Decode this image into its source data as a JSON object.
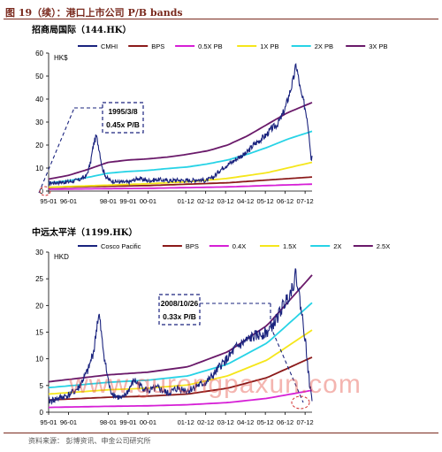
{
  "figure": {
    "title": "图 19（续）：港口上市公司 P/B bands",
    "source": "资料来源：  彭博资讯、申金公司研究所",
    "watermark": "www.gurongpaxun.com"
  },
  "chart_data": [
    {
      "type": "line",
      "title": "招商局国际（144.HK）",
      "ylabel": "HK$",
      "ylim": [
        0,
        60
      ],
      "yticks": [
        0,
        10,
        20,
        30,
        40,
        50,
        60
      ],
      "x_start": 1995.0,
      "x_end": 2008.25,
      "xticks": [
        "95-01",
        "96-01",
        "98-01",
        "99-01",
        "00-01",
        "01-12",
        "02-12",
        "03-12",
        "04-12",
        "05-12",
        "06-12",
        "07-12"
      ],
      "xtick_positions": [
        1995.0,
        1996.0,
        1998.0,
        1999.0,
        2000.0,
        2001.9,
        2002.9,
        2003.9,
        2004.9,
        2005.9,
        2006.9,
        2007.9
      ],
      "annotation": {
        "line1": "1995/3/8",
        "line2": "0.45x P/B"
      },
      "series": [
        {
          "name": "CMHI",
          "color": "#1a237e",
          "noisy": true,
          "points": [
            [
              1995.0,
              3.5
            ],
            [
              1995.2,
              3.6
            ],
            [
              1995.5,
              3.8
            ],
            [
              1996.0,
              4.0
            ],
            [
              1996.5,
              4.8
            ],
            [
              1996.9,
              6.5
            ],
            [
              1997.1,
              12
            ],
            [
              1997.25,
              20
            ],
            [
              1997.4,
              24
            ],
            [
              1997.55,
              18
            ],
            [
              1997.7,
              10
            ],
            [
              1997.9,
              6
            ],
            [
              1998.1,
              4.5
            ],
            [
              1998.5,
              4.0
            ],
            [
              1999.0,
              3.8
            ],
            [
              1999.5,
              5.5
            ],
            [
              2000.0,
              4.5
            ],
            [
              2000.5,
              5.0
            ],
            [
              2001.0,
              4.5
            ],
            [
              2001.5,
              4.8
            ],
            [
              2002.0,
              4.5
            ],
            [
              2002.5,
              5.0
            ],
            [
              2002.9,
              4.5
            ],
            [
              2003.3,
              6
            ],
            [
              2003.6,
              9
            ],
            [
              2003.9,
              11
            ],
            [
              2004.3,
              13
            ],
            [
              2004.6,
              15
            ],
            [
              2004.9,
              16
            ],
            [
              2005.3,
              20
            ],
            [
              2005.6,
              22
            ],
            [
              2005.9,
              24
            ],
            [
              2006.2,
              27
            ],
            [
              2006.5,
              29
            ],
            [
              2006.7,
              32
            ],
            [
              2006.9,
              36
            ],
            [
              2007.1,
              42
            ],
            [
              2007.3,
              48
            ],
            [
              2007.45,
              55
            ],
            [
              2007.55,
              50
            ],
            [
              2007.7,
              42
            ],
            [
              2007.85,
              38
            ],
            [
              2008.0,
              32
            ],
            [
              2008.1,
              25
            ],
            [
              2008.2,
              14
            ],
            [
              2008.25,
              15
            ]
          ]
        },
        {
          "name": "BPS",
          "color": "#8b1a1a",
          "noisy": false,
          "points": [
            [
              1995.0,
              1.6
            ],
            [
              2000.0,
              2.4
            ],
            [
              2004.0,
              3.6
            ],
            [
              2006.0,
              4.8
            ],
            [
              2008.25,
              6.1
            ]
          ]
        },
        {
          "name": "0.5X PB",
          "color": "#d61fd6",
          "noisy": false,
          "points": [
            [
              1995.0,
              0.8
            ],
            [
              2000.0,
              1.2
            ],
            [
              2004.0,
              1.8
            ],
            [
              2006.0,
              2.4
            ],
            [
              2008.25,
              3.0
            ]
          ]
        },
        {
          "name": "1X PB",
          "color": "#f5e61b",
          "noisy": false,
          "points": [
            [
              1995.0,
              1.7
            ],
            [
              1996.0,
              2.0
            ],
            [
              1998.0,
              2.6
            ],
            [
              2000.0,
              3.2
            ],
            [
              2002.0,
              4.0
            ],
            [
              2004.0,
              5.5
            ],
            [
              2006.0,
              8
            ],
            [
              2007.0,
              10
            ],
            [
              2008.25,
              12.5
            ]
          ]
        },
        {
          "name": "2X PB",
          "color": "#27d3e6",
          "noisy": false,
          "points": [
            [
              1995.0,
              3.5
            ],
            [
              1996.0,
              4.5
            ],
            [
              1997.0,
              6.0
            ],
            [
              1998.0,
              7.8
            ],
            [
              1999.0,
              8.5
            ],
            [
              2000.0,
              9.0
            ],
            [
              2001.0,
              9.8
            ],
            [
              2002.0,
              10.5
            ],
            [
              2003.0,
              11.8
            ],
            [
              2004.0,
              13.5
            ],
            [
              2005.0,
              16.0
            ],
            [
              2006.0,
              19.0
            ],
            [
              2007.0,
              22.5
            ],
            [
              2008.25,
              26.0
            ]
          ]
        },
        {
          "name": "3X PB",
          "color": "#6a1a6a",
          "noisy": false,
          "points": [
            [
              1995.0,
              5.2
            ],
            [
              1996.0,
              6.8
            ],
            [
              1997.0,
              9.5
            ],
            [
              1998.0,
              12.5
            ],
            [
              1999.0,
              13.5
            ],
            [
              2000.0,
              14.0
            ],
            [
              2001.0,
              14.8
            ],
            [
              2002.0,
              16.0
            ],
            [
              2003.0,
              17.5
            ],
            [
              2004.0,
              20.0
            ],
            [
              2005.0,
              24.0
            ],
            [
              2006.0,
              29.0
            ],
            [
              2007.0,
              34.0
            ],
            [
              2008.25,
              38.5
            ]
          ]
        }
      ]
    },
    {
      "type": "line",
      "title": "中远太平洋（1199.HK）",
      "ylabel": "HKD",
      "ylim": [
        0,
        30
      ],
      "yticks": [
        0,
        5,
        10,
        15,
        20,
        25,
        30
      ],
      "x_start": 1995.0,
      "x_end": 2008.25,
      "xticks": [
        "95-01",
        "96-01",
        "98-01",
        "99-01",
        "00-01",
        "01-12",
        "02-12",
        "03-12",
        "04-12",
        "05-12",
        "06-12",
        "07-12"
      ],
      "xtick_positions": [
        1995.0,
        1996.0,
        1998.0,
        1999.0,
        2000.0,
        2001.9,
        2002.9,
        2003.9,
        2004.9,
        2005.9,
        2006.9,
        2007.9
      ],
      "annotation": {
        "line1": "2008/10/26",
        "line2": "0.33x P/B"
      },
      "series": [
        {
          "name": "Cosco Pacific",
          "color": "#1a237e",
          "noisy": true,
          "points": [
            [
              1995.0,
              2.0
            ],
            [
              1995.5,
              2.6
            ],
            [
              1996.0,
              3.2
            ],
            [
              1996.5,
              4.5
            ],
            [
              1997.0,
              8
            ],
            [
              1997.3,
              12
            ],
            [
              1997.45,
              17
            ],
            [
              1997.55,
              18
            ],
            [
              1997.7,
              13
            ],
            [
              1997.9,
              8
            ],
            [
              1998.1,
              4
            ],
            [
              1998.4,
              3
            ],
            [
              1998.7,
              2.5
            ],
            [
              1999.0,
              4
            ],
            [
              1999.3,
              6
            ],
            [
              1999.6,
              5
            ],
            [
              2000.0,
              4
            ],
            [
              2000.5,
              4.5
            ],
            [
              2001.0,
              3.5
            ],
            [
              2001.5,
              4.5
            ],
            [
              2002.0,
              4.0
            ],
            [
              2002.5,
              5.0
            ],
            [
              2002.9,
              5.5
            ],
            [
              2003.3,
              7
            ],
            [
              2003.7,
              9
            ],
            [
              2004.0,
              10
            ],
            [
              2004.4,
              12
            ],
            [
              2004.8,
              13
            ],
            [
              2005.2,
              14
            ],
            [
              2005.6,
              14.5
            ],
            [
              2006.0,
              15
            ],
            [
              2006.4,
              17
            ],
            [
              2006.8,
              20
            ],
            [
              2007.1,
              22
            ],
            [
              2007.3,
              24
            ],
            [
              2007.45,
              26
            ],
            [
              2007.6,
              22
            ],
            [
              2007.75,
              18
            ],
            [
              2007.9,
              14
            ],
            [
              2008.0,
              10
            ],
            [
              2008.1,
              6
            ],
            [
              2008.2,
              3.5
            ],
            [
              2008.25,
              2.5
            ]
          ]
        },
        {
          "name": "BPS",
          "color": "#8b1a1a",
          "noisy": false,
          "points": [
            [
              1995.0,
              2.3
            ],
            [
              1998.0,
              2.8
            ],
            [
              2000.0,
              3.0
            ],
            [
              2002.0,
              3.4
            ],
            [
              2004.0,
              4.5
            ],
            [
              2006.0,
              6.5
            ],
            [
              2008.25,
              10.3
            ]
          ]
        },
        {
          "name": "0.4X",
          "color": "#d61fd6",
          "noisy": false,
          "points": [
            [
              1995.0,
              0.9
            ],
            [
              1998.0,
              1.1
            ],
            [
              2000.0,
              1.2
            ],
            [
              2002.0,
              1.4
            ],
            [
              2004.0,
              1.8
            ],
            [
              2006.0,
              2.6
            ],
            [
              2008.25,
              4.1
            ]
          ]
        },
        {
          "name": "1.5X",
          "color": "#f5e61b",
          "noisy": false,
          "points": [
            [
              1995.0,
              3.4
            ],
            [
              1998.0,
              4.2
            ],
            [
              2000.0,
              4.5
            ],
            [
              2002.0,
              5.1
            ],
            [
              2004.0,
              6.8
            ],
            [
              2006.0,
              9.8
            ],
            [
              2008.25,
              15.4
            ]
          ]
        },
        {
          "name": "2X",
          "color": "#27d3e6",
          "noisy": false,
          "points": [
            [
              1995.0,
              4.6
            ],
            [
              1998.0,
              5.6
            ],
            [
              2000.0,
              6.0
            ],
            [
              2002.0,
              6.8
            ],
            [
              2004.0,
              9.0
            ],
            [
              2006.0,
              13.0
            ],
            [
              2008.25,
              20.5
            ]
          ]
        },
        {
          "name": "2.5X",
          "color": "#6a1a6a",
          "noisy": false,
          "points": [
            [
              1995.0,
              5.7
            ],
            [
              1998.0,
              7.0
            ],
            [
              2000.0,
              7.5
            ],
            [
              2002.0,
              8.5
            ],
            [
              2004.0,
              11.3
            ],
            [
              2006.0,
              16.3
            ],
            [
              2008.25,
              25.7
            ]
          ]
        }
      ]
    }
  ]
}
